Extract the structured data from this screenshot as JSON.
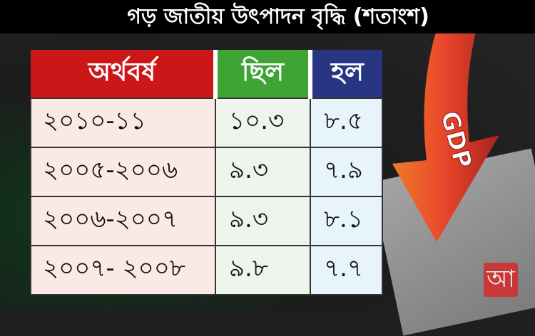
{
  "title": "গড় জাতীয় উৎপাদন বৃদ্ধি (শতাংশ)",
  "colors": {
    "year_header": "#cc1719",
    "was_header": "#3ea535",
    "now_header": "#283583",
    "arrow": "#e8452a"
  },
  "table": {
    "headers": [
      "অর্থবর্ষ",
      "ছিল",
      "হল"
    ],
    "rows": [
      [
        "২০১০-১১",
        "১০.৩",
        "৮.৫"
      ],
      [
        "২০০৫-২০০৬",
        "৯.৩",
        "৭.৯"
      ],
      [
        "২০০৬-২০০৭",
        "৯.৩",
        "৮.১"
      ],
      [
        "২০০৭- ২০০৮",
        "৯.৮",
        "৭.৭"
      ]
    ]
  },
  "arrow_label": "GDP",
  "logo_text": "আ"
}
